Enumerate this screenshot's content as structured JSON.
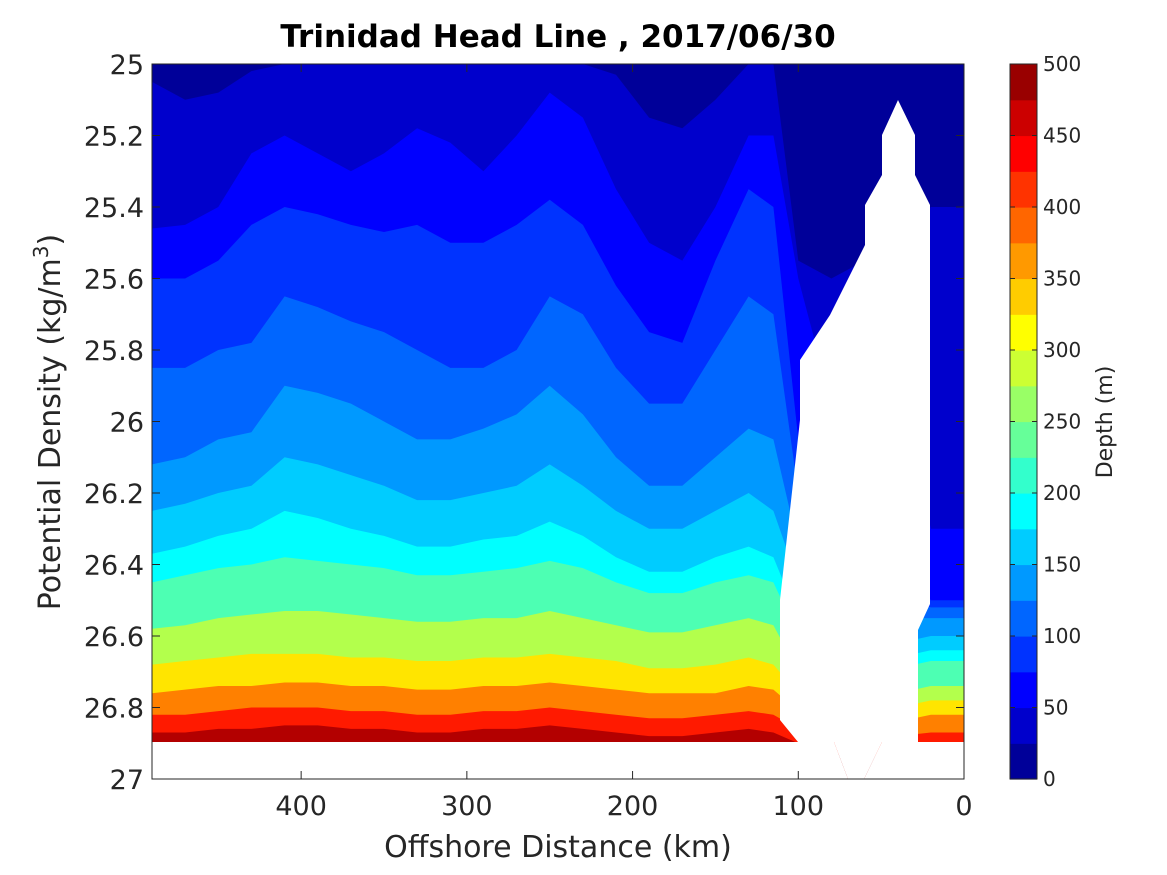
{
  "chart_data": {
    "type": "contour",
    "title": "Trinidad Head Line , 2017/06/30",
    "xlabel": "Offshore Distance (km)",
    "ylabel_main": "Potential Density (kg/m",
    "ylabel_sup": "3",
    "ylabel_close": ")",
    "xlim": [
      490,
      0
    ],
    "ylim": [
      25,
      27
    ],
    "x_reversed": true,
    "y_reversed": true,
    "xticks": [
      "400",
      "300",
      "200",
      "100",
      "0"
    ],
    "xtick_values": [
      400,
      300,
      200,
      100,
      0
    ],
    "yticks": [
      "25",
      "25.2",
      "25.4",
      "25.6",
      "25.8",
      "26",
      "26.2",
      "26.4",
      "26.6",
      "26.8",
      "27"
    ],
    "ytick_values": [
      25,
      25.2,
      25.4,
      25.6,
      25.8,
      26,
      26.2,
      26.4,
      26.6,
      26.8,
      27
    ],
    "colorbar": {
      "label": "Depth (m)",
      "ticks": [
        "0",
        "50",
        "100",
        "150",
        "200",
        "250",
        "300",
        "350",
        "400",
        "450",
        "500"
      ],
      "tick_values": [
        0,
        50,
        100,
        150,
        200,
        250,
        300,
        350,
        400,
        450,
        500
      ],
      "range": [
        0,
        500
      ],
      "levels": 20,
      "colormap": "jet"
    },
    "contour_levels_step": 25,
    "distance_km": [
      490,
      470,
      450,
      430,
      410,
      390,
      370,
      350,
      330,
      310,
      290,
      270,
      250,
      230,
      210,
      190,
      170,
      150,
      130,
      115,
      100,
      80,
      60,
      40,
      20
    ],
    "depth_isolines_density": [
      {
        "depth": 25,
        "density": [
          25.05,
          25.1,
          25.08,
          25.02,
          25.0,
          25.0,
          25.0,
          25.0,
          25.0,
          25.0,
          25.0,
          25.0,
          25.0,
          25.0,
          25.03,
          25.15,
          25.18,
          25.1,
          25.0,
          25.0,
          25.55,
          25.6,
          25.55,
          25.5,
          25.4
        ]
      },
      {
        "depth": 50,
        "density": [
          25.46,
          25.45,
          25.4,
          25.25,
          25.2,
          25.25,
          25.3,
          25.25,
          25.18,
          25.22,
          25.3,
          25.2,
          25.08,
          25.15,
          25.35,
          25.5,
          25.55,
          25.4,
          25.2,
          25.2,
          25.6,
          25.95,
          25.95,
          25.9,
          26.3
        ]
      },
      {
        "depth": 75,
        "density": [
          25.6,
          25.6,
          25.55,
          25.45,
          25.4,
          25.42,
          25.45,
          25.47,
          25.45,
          25.5,
          25.5,
          25.45,
          25.38,
          25.45,
          25.62,
          25.75,
          25.78,
          25.55,
          25.35,
          25.4,
          26.05,
          26.2,
          26.3,
          26.4,
          26.5
        ]
      },
      {
        "depth": 100,
        "density": [
          25.85,
          25.85,
          25.8,
          25.78,
          25.65,
          25.68,
          25.72,
          25.75,
          25.8,
          25.85,
          25.85,
          25.8,
          25.65,
          25.7,
          25.85,
          25.95,
          25.95,
          25.8,
          25.65,
          25.7,
          26.2,
          26.4,
          26.48,
          26.5,
          26.52
        ]
      },
      {
        "depth": 125,
        "density": [
          26.12,
          26.1,
          26.05,
          26.03,
          25.9,
          25.92,
          25.95,
          26.0,
          26.05,
          26.05,
          26.02,
          25.98,
          25.9,
          25.98,
          26.1,
          26.18,
          26.18,
          26.1,
          26.02,
          26.05,
          26.35,
          26.48,
          26.55,
          26.55,
          26.55
        ]
      },
      {
        "depth": 150,
        "density": [
          26.25,
          26.23,
          26.2,
          26.18,
          26.1,
          26.12,
          26.15,
          26.18,
          26.22,
          26.22,
          26.2,
          26.18,
          26.12,
          26.18,
          26.25,
          26.3,
          26.3,
          26.25,
          26.2,
          26.25,
          26.45,
          26.55,
          26.62,
          26.62,
          26.6
        ]
      },
      {
        "depth": 175,
        "density": [
          26.37,
          26.35,
          26.32,
          26.3,
          26.25,
          26.27,
          26.3,
          26.32,
          26.35,
          26.35,
          26.33,
          26.32,
          26.28,
          26.32,
          26.38,
          26.42,
          26.42,
          26.38,
          26.35,
          26.38,
          26.55,
          26.62,
          26.66,
          26.66,
          26.64
        ]
      },
      {
        "depth": 200,
        "density": [
          26.45,
          26.43,
          26.41,
          26.4,
          26.38,
          26.39,
          26.4,
          26.41,
          26.43,
          26.43,
          26.42,
          26.41,
          26.39,
          26.41,
          26.45,
          26.48,
          26.48,
          26.45,
          26.43,
          26.45,
          26.6,
          26.66,
          26.69,
          26.69,
          26.67
        ]
      },
      {
        "depth": 250,
        "density": [
          26.58,
          26.57,
          26.55,
          26.54,
          26.53,
          26.53,
          26.54,
          26.55,
          26.56,
          26.56,
          26.55,
          26.55,
          26.53,
          26.55,
          26.57,
          26.59,
          26.59,
          26.57,
          26.55,
          26.57,
          26.7,
          26.75,
          26.77,
          26.76,
          26.74
        ]
      },
      {
        "depth": 300,
        "density": [
          26.68,
          26.67,
          26.66,
          26.65,
          26.65,
          26.65,
          26.66,
          26.66,
          26.67,
          26.67,
          26.66,
          26.66,
          26.65,
          26.66,
          26.67,
          26.69,
          26.69,
          26.68,
          26.66,
          26.68,
          26.76,
          26.8,
          26.81,
          26.8,
          26.78
        ]
      },
      {
        "depth": 350,
        "density": [
          26.76,
          26.75,
          26.74,
          26.74,
          26.73,
          26.73,
          26.74,
          26.74,
          26.75,
          26.75,
          26.74,
          26.74,
          26.73,
          26.74,
          26.75,
          26.76,
          26.76,
          26.76,
          26.74,
          26.75,
          26.81,
          26.84,
          26.85,
          26.84,
          26.82
        ]
      },
      {
        "depth": 400,
        "density": [
          26.82,
          26.82,
          26.81,
          26.8,
          26.8,
          26.8,
          26.81,
          26.81,
          26.82,
          26.82,
          26.81,
          26.81,
          26.8,
          26.81,
          26.82,
          26.83,
          26.83,
          26.82,
          26.81,
          26.82,
          26.86,
          26.88,
          26.89,
          26.88,
          26.87
        ]
      },
      {
        "depth": 450,
        "density": [
          26.87,
          26.87,
          26.86,
          26.86,
          26.85,
          26.85,
          26.86,
          26.86,
          26.87,
          26.87,
          26.86,
          26.86,
          26.85,
          26.86,
          26.87,
          26.88,
          26.88,
          26.87,
          26.86,
          26.87,
          26.9,
          26.93,
          26.94,
          26.93,
          26.92
        ]
      }
    ],
    "no_data_regions": [
      "shallow inshore wedge near 25–25.7 kg/m3, 20–100 km",
      "below 26.9 kg/m3 except trough near 60–80 km"
    ]
  }
}
